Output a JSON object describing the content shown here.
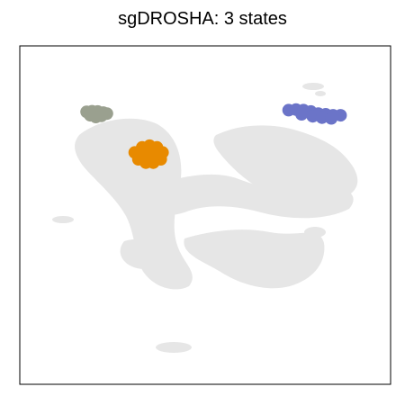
{
  "chart_data": {
    "type": "scatter",
    "title": "sgDROSHA: 3 states",
    "xlabel": "",
    "ylabel": "",
    "axes_ticks": "none",
    "background_color": "#e6e6e6",
    "background_description": "UMAP embedding of all cells shown in light grey",
    "series": [
      {
        "color": "#9aa08f",
        "points": [
          [
            0.18,
            0.805
          ],
          [
            0.195,
            0.807
          ],
          [
            0.21,
            0.806
          ],
          [
            0.225,
            0.803
          ],
          [
            0.235,
            0.8
          ],
          [
            0.205,
            0.79
          ],
          [
            0.19,
            0.795
          ],
          [
            0.22,
            0.793
          ]
        ]
      },
      {
        "color": "#e88a00",
        "points": [
          [
            0.31,
            0.685
          ],
          [
            0.33,
            0.7
          ],
          [
            0.35,
            0.705
          ],
          [
            0.37,
            0.7
          ],
          [
            0.385,
            0.685
          ],
          [
            0.38,
            0.665
          ],
          [
            0.36,
            0.655
          ],
          [
            0.34,
            0.655
          ],
          [
            0.32,
            0.665
          ],
          [
            0.35,
            0.68
          ],
          [
            0.335,
            0.678
          ],
          [
            0.365,
            0.678
          ]
        ]
      },
      {
        "color": "#6b74c8",
        "points": [
          [
            0.725,
            0.81
          ],
          [
            0.745,
            0.812
          ],
          [
            0.765,
            0.81
          ],
          [
            0.785,
            0.806
          ],
          [
            0.805,
            0.8
          ],
          [
            0.825,
            0.798
          ],
          [
            0.845,
            0.795
          ],
          [
            0.865,
            0.795
          ],
          [
            0.79,
            0.792
          ],
          [
            0.815,
            0.788
          ],
          [
            0.84,
            0.786
          ],
          [
            0.76,
            0.798
          ]
        ]
      }
    ]
  }
}
